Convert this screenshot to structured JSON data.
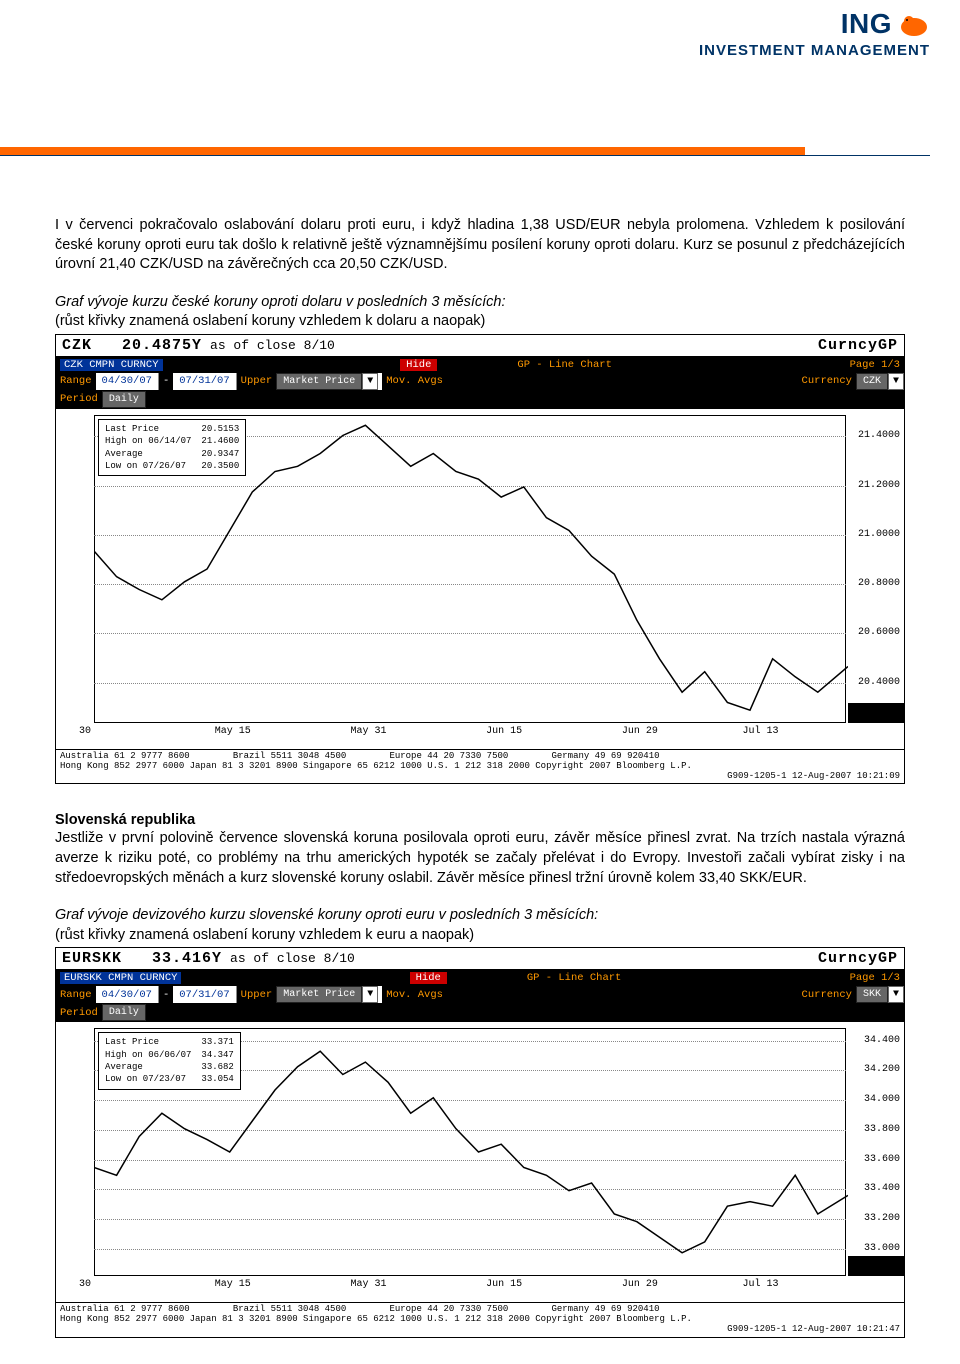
{
  "header": {
    "logo_text": "ING",
    "logo_sub": "INVESTMENT MANAGEMENT",
    "logo_color": "#003366",
    "lion_color": "#ff6600",
    "bar_color": "#ff6600"
  },
  "paragraph1": "I v červenci pokračovalo oslabování dolaru proti euru, i když hladina 1,38 USD/EUR nebyla prolomena. Vzhledem k posilování české koruny oproti euru tak došlo k relativně ještě významnějšímu posílení koruny oproti dolaru. Kurz se posunul z předcházejících úrovní 21,40 CZK/USD na závěrečných cca 20,50 CZK/USD.",
  "caption1_ital": "Graf vývoje kurzu české koruny oproti dolaru v posledních 3 měsících:",
  "caption1_plain": "(růst křivky znamená oslabení koruny vzhledem k dolaru a naopak)",
  "chart1": {
    "type": "line",
    "ticker": "CZK",
    "price": "20.4875Y",
    "asof": "as of close  8/10",
    "curncy": "CurncyGP",
    "toolbar_left": "CZK CMPN CURNCY",
    "toolbar_hide": "Hide",
    "toolbar_mid": "GP - Line Chart",
    "toolbar_page": "Page 1/3",
    "range_lbl": "Range",
    "range_from": "04/30/07",
    "range_to": "07/31/07",
    "upper_lbl": "Upper",
    "upper_val": "Market Price",
    "movavg_lbl": "Mov. Avgs",
    "currency_lbl": "Currency",
    "currency_val": "CZK",
    "period_lbl": "Period",
    "period_val": "Daily",
    "stats": {
      "last_price_lbl": "Last Price",
      "last_price": "20.5153",
      "high_lbl": "High on 06/14/07",
      "high": "21.4600",
      "avg_lbl": "Average",
      "avg": "20.9347",
      "low_lbl": "Low on 07/26/07",
      "low": "20.3500"
    },
    "yticks": [
      {
        "v": "21.4000",
        "pct": 7
      },
      {
        "v": "21.2000",
        "pct": 23
      },
      {
        "v": "21.0000",
        "pct": 39
      },
      {
        "v": "20.8000",
        "pct": 55
      },
      {
        "v": "20.6000",
        "pct": 71
      },
      {
        "v": "20.4000",
        "pct": 87
      }
    ],
    "ylim": [
      20.3,
      21.5
    ],
    "xticks": [
      {
        "v": "30",
        "pct": 0
      },
      {
        "v": "May 15",
        "pct": 18
      },
      {
        "v": "May 31",
        "pct": 36
      },
      {
        "v": "Jun 15",
        "pct": 54
      },
      {
        "v": "Jun 29",
        "pct": 72
      },
      {
        "v": "Jul 13",
        "pct": 88
      }
    ],
    "series": [
      [
        0,
        20.97
      ],
      [
        3,
        20.87
      ],
      [
        6,
        20.82
      ],
      [
        9,
        20.78
      ],
      [
        12,
        20.85
      ],
      [
        15,
        20.9
      ],
      [
        18,
        21.05
      ],
      [
        21,
        21.2
      ],
      [
        24,
        21.28
      ],
      [
        27,
        21.3
      ],
      [
        30,
        21.35
      ],
      [
        33,
        21.42
      ],
      [
        36,
        21.46
      ],
      [
        39,
        21.38
      ],
      [
        42,
        21.3
      ],
      [
        45,
        21.35
      ],
      [
        48,
        21.28
      ],
      [
        51,
        21.25
      ],
      [
        54,
        21.18
      ],
      [
        57,
        21.22
      ],
      [
        60,
        21.1
      ],
      [
        63,
        21.05
      ],
      [
        66,
        20.95
      ],
      [
        69,
        20.88
      ],
      [
        72,
        20.7
      ],
      [
        75,
        20.55
      ],
      [
        78,
        20.42
      ],
      [
        81,
        20.5
      ],
      [
        84,
        20.38
      ],
      [
        87,
        20.35
      ],
      [
        90,
        20.55
      ],
      [
        93,
        20.48
      ],
      [
        96,
        20.42
      ],
      [
        100,
        20.52
      ]
    ],
    "footer1": "Australia 61 2 9777 8600        Brazil 5511 3048 4500        Europe 44 20 7330 7500        Germany 49 69 920410",
    "footer2": "Hong Kong 852 2977 6000 Japan 81 3 3201 8900 Singapore 65 6212 1000 U.S. 1 212 318 2000 Copyright 2007 Bloomberg L.P.",
    "footer3": "G909-1205-1 12-Aug-2007 10:21:09"
  },
  "section2_head": "Slovenská republika",
  "paragraph2": "Jestliže v první polovině července slovenská koruna posilovala oproti euru, závěr měsíce přinesl zvrat. Na trzích nastala výrazná averze k riziku poté, co problémy na trhu amerických hypoték se začaly přelévat i do Evropy. Investoři začali vybírat zisky i na středoevropských měnách a kurz slovenské koruny oslabil. Závěr měsíce přinesl tržní úrovně kolem 33,40 SKK/EUR.",
  "caption2_ital": "Graf vývoje devizového kurzu slovenské koruny oproti euru v posledních 3 měsících:",
  "caption2_plain": "(růst křivky znamená oslabení koruny vzhledem k euru a naopak)",
  "chart2": {
    "type": "line",
    "ticker": "EURSKK",
    "price": "33.416Y",
    "asof": "as of close  8/10",
    "curncy": "CurncyGP",
    "toolbar_left": "EURSKK CMPN CURNCY",
    "toolbar_hide": "Hide",
    "toolbar_mid": "GP - Line Chart",
    "toolbar_page": "Page 1/3",
    "range_lbl": "Range",
    "range_from": "04/30/07",
    "range_to": "07/31/07",
    "upper_lbl": "Upper",
    "upper_val": "Market Price",
    "movavg_lbl": "Mov. Avgs",
    "currency_lbl": "Currency",
    "currency_val": "SKK",
    "period_lbl": "Period",
    "period_val": "Daily",
    "stats": {
      "last_price_lbl": "Last Price",
      "last_price": "33.371",
      "high_lbl": "High on 06/06/07",
      "high": "34.347",
      "avg_lbl": "Average",
      "avg": "33.682",
      "low_lbl": "Low on 07/23/07",
      "low": "33.054"
    },
    "yticks": [
      {
        "v": "34.400",
        "pct": 5
      },
      {
        "v": "34.200",
        "pct": 17
      },
      {
        "v": "34.000",
        "pct": 29
      },
      {
        "v": "33.800",
        "pct": 41
      },
      {
        "v": "33.600",
        "pct": 53
      },
      {
        "v": "33.400",
        "pct": 65
      },
      {
        "v": "33.200",
        "pct": 77
      },
      {
        "v": "33.000",
        "pct": 89
      }
    ],
    "ylim": [
      32.9,
      34.5
    ],
    "xticks": [
      {
        "v": "30",
        "pct": 0
      },
      {
        "v": "May 15",
        "pct": 18
      },
      {
        "v": "May 31",
        "pct": 36
      },
      {
        "v": "Jun 15",
        "pct": 54
      },
      {
        "v": "Jun 29",
        "pct": 72
      },
      {
        "v": "Jul 13",
        "pct": 88
      }
    ],
    "series": [
      [
        0,
        33.6
      ],
      [
        3,
        33.55
      ],
      [
        6,
        33.8
      ],
      [
        9,
        33.95
      ],
      [
        12,
        33.85
      ],
      [
        15,
        33.78
      ],
      [
        18,
        33.7
      ],
      [
        21,
        33.9
      ],
      [
        24,
        34.1
      ],
      [
        27,
        34.25
      ],
      [
        30,
        34.35
      ],
      [
        33,
        34.2
      ],
      [
        36,
        34.28
      ],
      [
        39,
        34.15
      ],
      [
        42,
        33.95
      ],
      [
        45,
        34.05
      ],
      [
        48,
        33.85
      ],
      [
        51,
        33.7
      ],
      [
        54,
        33.75
      ],
      [
        57,
        33.6
      ],
      [
        60,
        33.55
      ],
      [
        63,
        33.45
      ],
      [
        66,
        33.5
      ],
      [
        69,
        33.3
      ],
      [
        72,
        33.25
      ],
      [
        75,
        33.15
      ],
      [
        78,
        33.05
      ],
      [
        81,
        33.12
      ],
      [
        84,
        33.35
      ],
      [
        87,
        33.38
      ],
      [
        90,
        33.35
      ],
      [
        93,
        33.55
      ],
      [
        96,
        33.3
      ],
      [
        100,
        33.42
      ]
    ],
    "footer1": "Australia 61 2 9777 8600        Brazil 5511 3048 4500        Europe 44 20 7330 7500        Germany 49 69 920410",
    "footer2": "Hong Kong 852 2977 6000 Japan 81 3 3201 8900 Singapore 65 6212 1000 U.S. 1 212 318 2000 Copyright 2007 Bloomberg L.P.",
    "footer3": "G909-1205-1 12-Aug-2007 10:21:47"
  }
}
